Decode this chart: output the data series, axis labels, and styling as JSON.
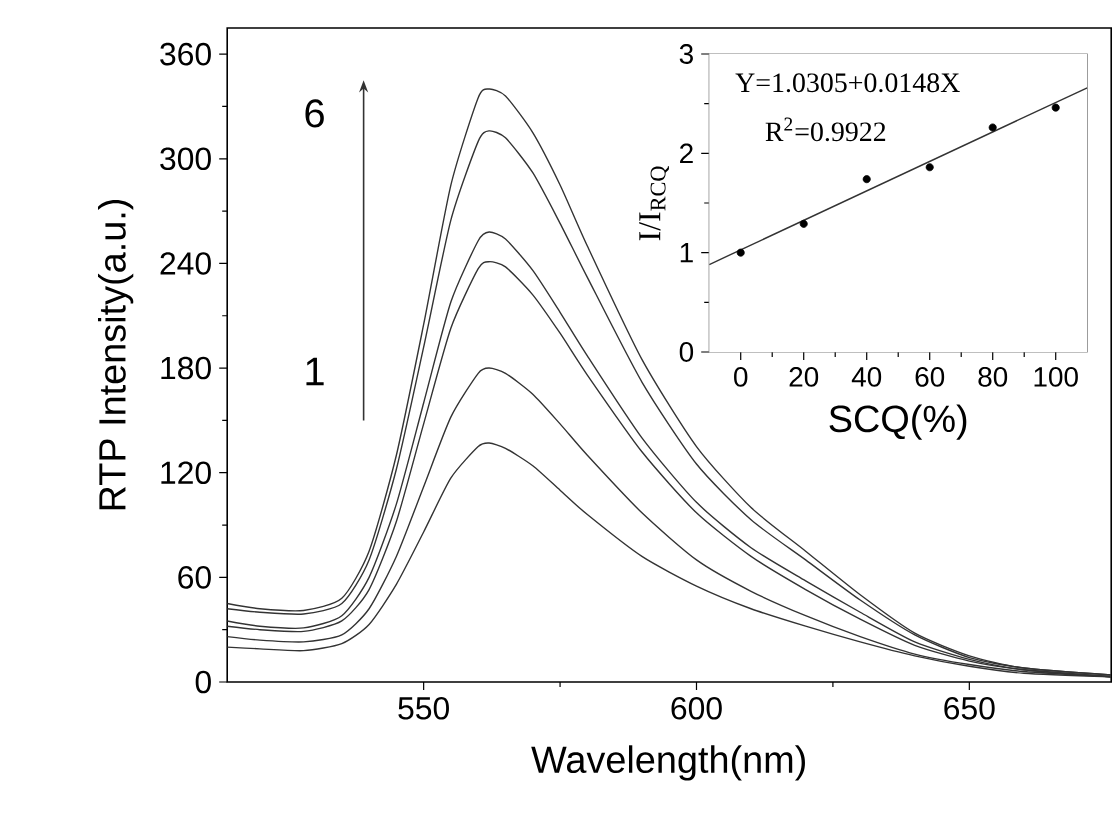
{
  "chart_data": [
    {
      "type": "line",
      "xlabel": "Wavelength(nm)",
      "ylabel": "RTP Intensity(a.u.)",
      "x": [
        514,
        520,
        528,
        535,
        540,
        545,
        550,
        555,
        560,
        562,
        565,
        570,
        575,
        580,
        590,
        600,
        610,
        620,
        630,
        640,
        650,
        660,
        676
      ],
      "series": [
        {
          "color": "#333333",
          "values": [
            20,
            19,
            18,
            22,
            33,
            56,
            86,
            117,
            135,
            137,
            134,
            124,
            110,
            96,
            72,
            55,
            42,
            32,
            23,
            15,
            9,
            5,
            3
          ]
        },
        {
          "color": "#333333",
          "values": [
            26,
            24,
            23,
            27,
            42,
            72,
            112,
            152,
            177,
            180,
            177,
            165,
            148,
            130,
            97,
            70,
            52,
            38,
            26,
            16,
            10,
            6,
            3
          ]
        },
        {
          "color": "#333333",
          "values": [
            32,
            30,
            29,
            35,
            53,
            92,
            148,
            203,
            237,
            241,
            238,
            222,
            200,
            176,
            132,
            97,
            72,
            53,
            36,
            21,
            12,
            7,
            3
          ]
        },
        {
          "color": "#333333",
          "values": [
            35,
            32,
            31,
            38,
            60,
            102,
            160,
            218,
            253,
            258,
            254,
            236,
            212,
            187,
            140,
            103,
            77,
            58,
            40,
            23,
            13,
            7,
            3
          ]
        },
        {
          "color": "#333333",
          "values": [
            42,
            40,
            39,
            45,
            70,
            122,
            192,
            265,
            310,
            316,
            312,
            292,
            263,
            232,
            172,
            125,
            93,
            70,
            47,
            27,
            14,
            8,
            4
          ]
        },
        {
          "color": "#333333",
          "values": [
            45,
            42,
            41,
            48,
            75,
            130,
            205,
            285,
            335,
            340,
            336,
            315,
            285,
            250,
            185,
            135,
            100,
            75,
            50,
            28,
            15,
            8,
            4
          ]
        }
      ],
      "xlim": [
        514,
        676
      ],
      "ylim": [
        0,
        375
      ],
      "xticks": [
        550,
        600,
        650
      ],
      "yticks": [
        0,
        60,
        120,
        180,
        240,
        300,
        360
      ],
      "annotations": [
        "6",
        "1"
      ]
    },
    {
      "type": "scatter",
      "xlabel": "SCQ(%)",
      "ylabel": "I/I$_{RCQ}$",
      "series": [
        {
          "type": "scatter",
          "marker": "circle",
          "color": "#000000",
          "x": [
            0,
            20,
            40,
            60,
            80,
            100
          ],
          "values": [
            1.0,
            1.29,
            1.74,
            1.86,
            2.26,
            2.46
          ]
        },
        {
          "type": "line",
          "marker": "none",
          "color": "#333333",
          "x": [
            -10,
            110
          ],
          "values": [
            0.88,
            2.66
          ]
        }
      ],
      "xlim": [
        -10,
        110
      ],
      "ylim": [
        0,
        3
      ],
      "xticks": [
        0,
        20,
        40,
        60,
        80,
        100
      ],
      "yticks": [
        0,
        1,
        2,
        3
      ],
      "annotations": [
        "Y=1.0305+0.0148X",
        "R$^{2}$=0.9922"
      ]
    }
  ]
}
